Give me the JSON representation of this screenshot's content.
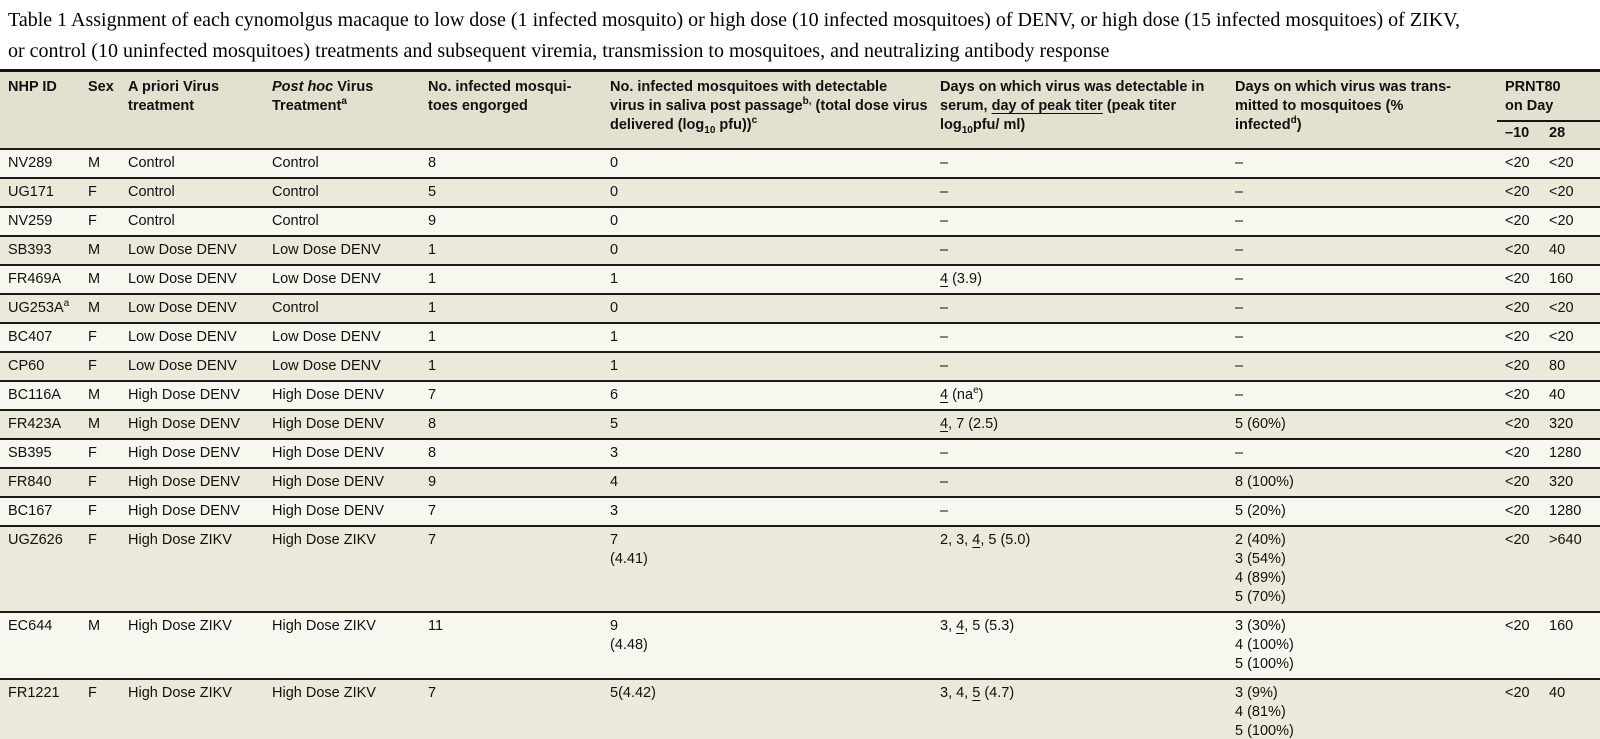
{
  "title": {
    "line1": "Table 1 Assignment of each cynomolgus macaque to low dose (1 infected mosquito) or high dose (10 infected mosquitoes) of DENV, or high dose (15 infected mosquitoes) of ZIKV,",
    "line2": "or control (10 uninfected mosquitoes) treatments and subsequent viremia, transmission to mosquitoes, and neutralizing antibody response"
  },
  "table": {
    "colors": {
      "header_bg": "#e3e0cf",
      "row_light": "#f8f7ef",
      "row_dark": "#ebe9da",
      "rule": "#1a1a1a"
    },
    "headers": {
      "nhp_id": "NHP ID",
      "sex": "Sex",
      "a_priori": "A priori Virus\ntreatment",
      "post_hoc": "[i]Post hoc[/i] Virus\nTreatment[sup]a[/sup]",
      "engorged": "No. infected mosqui-\ntoes engorged",
      "saliva": "No. infected mosquitoes with detectable\nvirus in saliva post passage[sup]b,[/sup] (total dose virus\ndelivered (log[sub]10[/sub] pfu))[sup]c[/sup]",
      "serum": "Days on which virus was detectable in\nserum, [u]day of peak titer[/u] (peak titer\nlog[sub]10[/sub]pfu/ ml)",
      "transmitted": "Days on which virus was trans-\nmitted to mosquitoes (%\ninfected[sup]d[/sup])",
      "prnt_group": "PRNT80\non Day",
      "day_minus10": "–10",
      "day_28": "28"
    },
    "rows": [
      {
        "id": "NV289",
        "sex": "M",
        "a_priori": "Control",
        "post_hoc": "Control",
        "engorged": "8",
        "saliva": "0",
        "serum": "–",
        "transmitted": "–",
        "prnt10": "<20",
        "prnt28": "<20"
      },
      {
        "id": "UG171",
        "sex": "F",
        "a_priori": "Control",
        "post_hoc": "Control",
        "engorged": "5",
        "saliva": "0",
        "serum": "–",
        "transmitted": "–",
        "prnt10": "<20",
        "prnt28": "<20"
      },
      {
        "id": "NV259",
        "sex": "F",
        "a_priori": "Control",
        "post_hoc": "Control",
        "engorged": "9",
        "saliva": "0",
        "serum": "–",
        "transmitted": "–",
        "prnt10": "<20",
        "prnt28": "<20"
      },
      {
        "id": "SB393",
        "sex": "M",
        "a_priori": "Low Dose DENV",
        "post_hoc": "Low Dose DENV",
        "engorged": "1",
        "saliva": "0",
        "serum": "–",
        "transmitted": "–",
        "prnt10": "<20",
        "prnt28": "40"
      },
      {
        "id": "FR469A",
        "sex": "M",
        "a_priori": "Low Dose DENV",
        "post_hoc": "Low Dose DENV",
        "engorged": "1",
        "saliva": "1",
        "serum": "[u]4[/u] (3.9)",
        "transmitted": "–",
        "prnt10": "<20",
        "prnt28": "160"
      },
      {
        "id": "UG253A[sup]a[/sup]",
        "sex": "M",
        "a_priori": "Low Dose DENV",
        "post_hoc": "Control",
        "engorged": "1",
        "saliva": "0",
        "serum": "–",
        "transmitted": "–",
        "prnt10": "<20",
        "prnt28": "<20"
      },
      {
        "id": "BC407",
        "sex": "F",
        "a_priori": "Low Dose DENV",
        "post_hoc": "Low Dose DENV",
        "engorged": "1",
        "saliva": "1",
        "serum": "–",
        "transmitted": "–",
        "prnt10": "<20",
        "prnt28": "<20"
      },
      {
        "id": "CP60",
        "sex": "F",
        "a_priori": "Low Dose DENV",
        "post_hoc": "Low Dose DENV",
        "engorged": "1",
        "saliva": "1",
        "serum": "–",
        "transmitted": "–",
        "prnt10": "<20",
        "prnt28": "80"
      },
      {
        "id": "BC116A",
        "sex": "M",
        "a_priori": "High Dose DENV",
        "post_hoc": "High Dose DENV",
        "engorged": "7",
        "saliva": "6",
        "serum": "[u]4[/u] (na[sup]e[/sup])",
        "transmitted": "–",
        "prnt10": "<20",
        "prnt28": "40"
      },
      {
        "id": "FR423A",
        "sex": "M",
        "a_priori": "High Dose DENV",
        "post_hoc": "High Dose DENV",
        "engorged": "8",
        "saliva": "5",
        "serum": "[u]4[/u], 7 (2.5)",
        "transmitted": "5 (60%)",
        "prnt10": "<20",
        "prnt28": "320"
      },
      {
        "id": "SB395",
        "sex": "F",
        "a_priori": "High Dose DENV",
        "post_hoc": "High Dose DENV",
        "engorged": "8",
        "saliva": "3",
        "serum": "–",
        "transmitted": "–",
        "prnt10": "<20",
        "prnt28": "1280"
      },
      {
        "id": "FR840",
        "sex": "F",
        "a_priori": "High Dose DENV",
        "post_hoc": "High Dose DENV",
        "engorged": "9",
        "saliva": "4",
        "serum": "–",
        "transmitted": "8 (100%)",
        "prnt10": "<20",
        "prnt28": "320"
      },
      {
        "id": "BC167",
        "sex": "F",
        "a_priori": "High Dose DENV",
        "post_hoc": "High Dose DENV",
        "engorged": "7",
        "saliva": "3",
        "serum": "–",
        "transmitted": "5 (20%)",
        "prnt10": "<20",
        "prnt28": "1280"
      },
      {
        "id": "UGZ626",
        "sex": "F",
        "a_priori": "High Dose ZIKV",
        "post_hoc": "High Dose ZIKV",
        "engorged": "7",
        "saliva": "7\n(4.41)",
        "serum": "2, 3, [u]4[/u], 5 (5.0)",
        "transmitted": "2 (40%)\n3 (54%)\n4 (89%)\n5 (70%)",
        "prnt10": "<20",
        "prnt28": ">640"
      },
      {
        "id": "EC644",
        "sex": "M",
        "a_priori": "High Dose ZIKV",
        "post_hoc": "High Dose ZIKV",
        "engorged": "11",
        "saliva": "9\n(4.48)",
        "serum": "3, [u]4[/u], 5 (5.3)",
        "transmitted": "3 (30%)\n4 (100%)\n5 (100%)",
        "prnt10": "<20",
        "prnt28": "160"
      },
      {
        "id": "FR1221",
        "sex": "F",
        "a_priori": "High Dose ZIKV",
        "post_hoc": "High Dose ZIKV",
        "engorged": "7",
        "saliva": "5(4.42)",
        "serum": "3, 4, [u]5[/u] (4.7)",
        "transmitted": "3 (9%)\n4 (81%)\n5 (100%)",
        "prnt10": "<20",
        "prnt28": "40"
      }
    ]
  }
}
